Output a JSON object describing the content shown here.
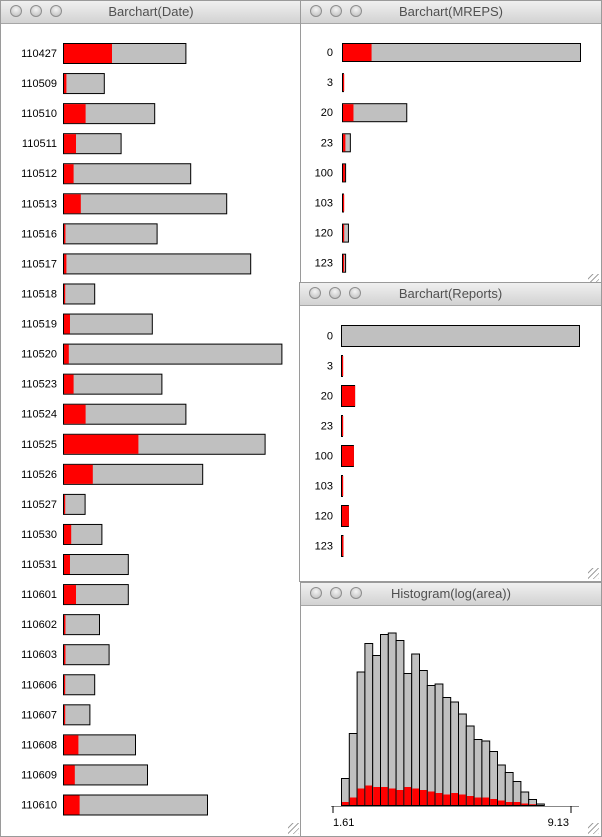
{
  "windows": {
    "date": {
      "title": "Barchart(Date)"
    },
    "mreps": {
      "title": "Barchart(MREPS)"
    },
    "reports": {
      "title": "Barchart(Reports)"
    },
    "hist": {
      "title": "Histogram(log(area))"
    }
  },
  "colors": {
    "total": "#c0c0c0",
    "selected": "#ff0000",
    "outline": "#000000"
  },
  "chart_data": [
    {
      "id": "date",
      "type": "bar",
      "orientation": "horizontal",
      "categories": [
        "110427",
        "110509",
        "110510",
        "110511",
        "110512",
        "110513",
        "110516",
        "110517",
        "110518",
        "110519",
        "110520",
        "110523",
        "110524",
        "110525",
        "110526",
        "110527",
        "110530",
        "110531",
        "110601",
        "110602",
        "110603",
        "110606",
        "110607",
        "110608",
        "110609",
        "110610"
      ],
      "series": [
        {
          "values": [
            51,
            17,
            38,
            24,
            53,
            68,
            39,
            78,
            13,
            37,
            91,
            41,
            51,
            84,
            58,
            9,
            16,
            27,
            27,
            15,
            19,
            13,
            11,
            30,
            35,
            60
          ]
        },
        {
          "values": [
            20,
            1,
            9,
            5,
            4,
            7,
            0.6,
            1,
            0.4,
            2.5,
            2,
            4,
            9,
            31,
            12,
            0.4,
            3,
            2.5,
            5,
            0.6,
            0.6,
            0.4,
            0.4,
            6,
            4.5,
            6.5
          ]
        }
      ],
      "xlim": [
        0,
        100
      ]
    },
    {
      "id": "mreps",
      "type": "bar",
      "orientation": "horizontal",
      "categories": [
        "0",
        "3",
        "20",
        "23",
        "100",
        "103",
        "120",
        "123"
      ],
      "series": [
        {
          "values": [
            100,
            0.4,
            27,
            3.3,
            1.3,
            0.4,
            2.5,
            1.3
          ]
        },
        {
          "values": [
            12,
            0.2,
            4.4,
            1,
            0.8,
            0.2,
            0.4,
            0.4
          ]
        }
      ],
      "xlim": [
        0,
        100
      ]
    },
    {
      "id": "reports",
      "type": "bar",
      "orientation": "horizontal",
      "categories": [
        "0",
        "3",
        "20",
        "23",
        "100",
        "103",
        "120",
        "123"
      ],
      "series": [
        {
          "values": [
            100,
            0.4,
            5.5,
            0.4,
            5,
            0.4,
            2.9,
            0.6
          ]
        },
        {
          "values": [
            0,
            0.4,
            5.5,
            0.4,
            5,
            0.4,
            2.9,
            0.6
          ]
        }
      ],
      "xlim": [
        0,
        100
      ]
    },
    {
      "id": "hist",
      "type": "bar",
      "x_range": [
        1.61,
        9.13
      ],
      "xtick_labels": [
        "1.61",
        "9.13"
      ],
      "series": [
        {
          "values": [
            18,
            48,
            89,
            108,
            100,
            114,
            115,
            110,
            88,
            101,
            90,
            80,
            81,
            72,
            69,
            61,
            53,
            44,
            43,
            36,
            27,
            22,
            16,
            9,
            4,
            1
          ]
        },
        {
          "values": [
            2,
            5,
            11,
            13,
            12,
            12,
            11,
            10,
            12,
            11,
            10,
            9,
            8,
            7,
            8,
            7,
            6,
            5,
            5,
            4,
            3,
            2,
            2,
            1,
            0.5,
            0
          ]
        }
      ],
      "ylim": [
        0,
        120
      ]
    }
  ]
}
